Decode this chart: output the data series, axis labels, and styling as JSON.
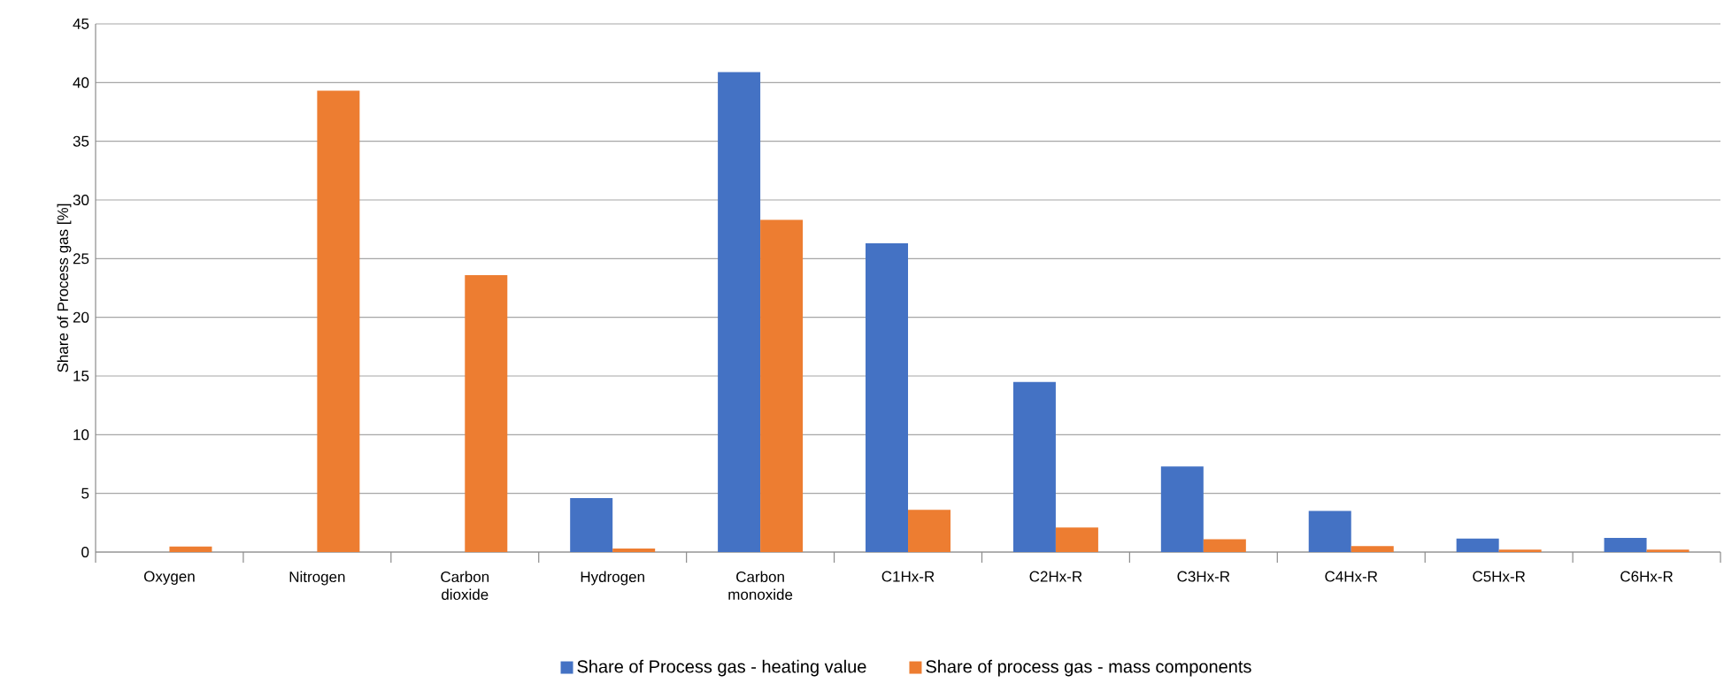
{
  "chart_data": {
    "type": "bar",
    "ylabel": "Share of Process gas [%]",
    "categories": [
      "Oxygen",
      "Nitrogen",
      "Carbon dioxide",
      "Hydrogen",
      "Carbon monoxide",
      "C1Hx-R",
      "C2Hx-R",
      "C3Hx-R",
      "C4Hx-R",
      "C5Hx-R",
      "C6Hx-R"
    ],
    "series": [
      {
        "name": "Share of Process gas - heating value",
        "color": "#4472c4",
        "values": [
          0,
          0,
          0,
          4.6,
          40.9,
          26.3,
          14.5,
          7.3,
          3.5,
          1.15,
          1.2
        ]
      },
      {
        "name": "Share of process gas - mass components",
        "color": "#ed7d31",
        "values": [
          0.48,
          39.3,
          23.6,
          0.3,
          28.3,
          3.6,
          2.1,
          1.1,
          0.5,
          0.2,
          0.2
        ]
      }
    ],
    "ylim": [
      0,
      45
    ],
    "yticks": [
      0,
      5,
      10,
      15,
      20,
      25,
      30,
      35,
      40,
      45
    ],
    "grid": "y",
    "legend": "bottom"
  }
}
